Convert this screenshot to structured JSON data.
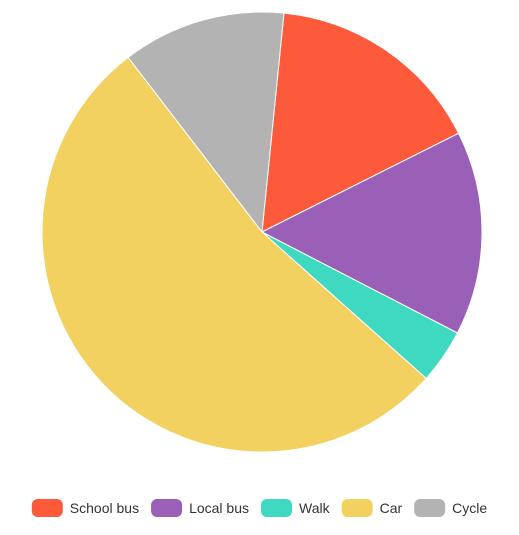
{
  "chart_data": {
    "type": "pie",
    "title": "",
    "legend_position": "bottom",
    "slices": [
      {
        "label": "School bus",
        "value": 16,
        "color": "#fc5a3a"
      },
      {
        "label": "Local bus",
        "value": 15,
        "color": "#9a5fb7"
      },
      {
        "label": "Walk",
        "value": 4,
        "color": "#3fd9c2"
      },
      {
        "label": "Car",
        "value": 53,
        "color": "#f2d160"
      },
      {
        "label": "Cycle",
        "value": 12,
        "color": "#b3b3b3"
      }
    ]
  }
}
